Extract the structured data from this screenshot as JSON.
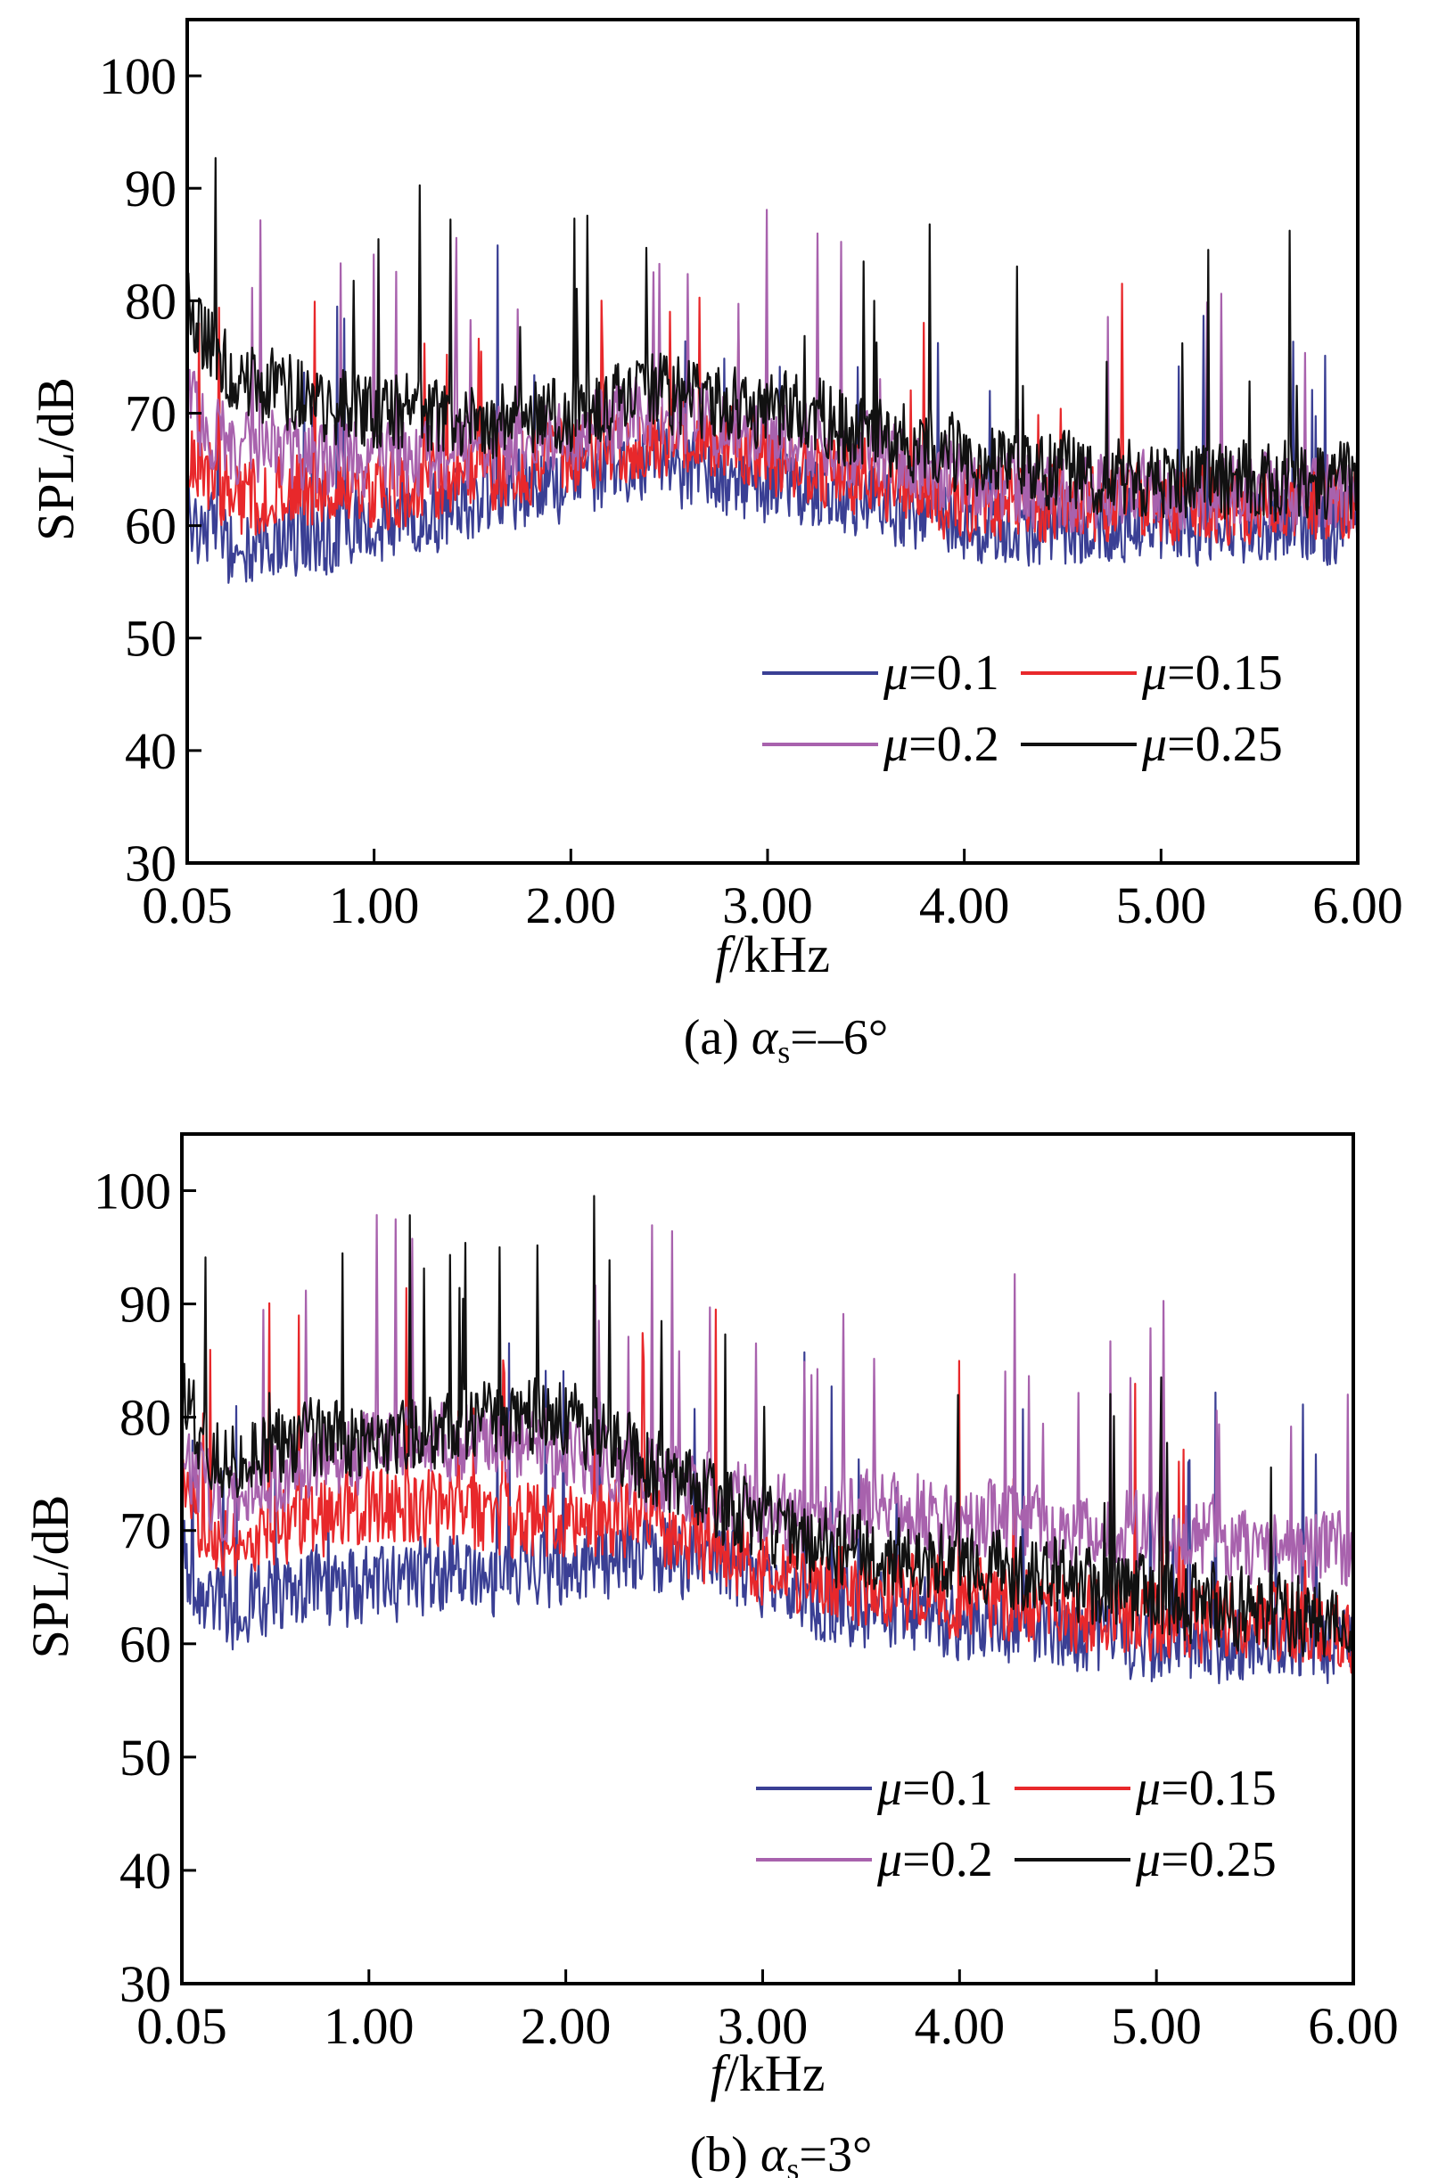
{
  "chart_data": [
    {
      "type": "line",
      "panel": "a",
      "caption": {
        "prefix": "(a) ",
        "symbol": "α",
        "subscript": "s",
        "suffix": "=–6°"
      },
      "xlabel": {
        "italic": "f",
        "rest": "/kHz"
      },
      "ylabel": "SPL/dB",
      "xlim": [
        0.05,
        6.0
      ],
      "ylim": [
        30,
        105
      ],
      "xticks": [
        "0.05",
        "1.00",
        "2.00",
        "3.00",
        "4.00",
        "5.00",
        "6.00"
      ],
      "yticks": [
        "30",
        "40",
        "50",
        "60",
        "70",
        "80",
        "90",
        "100"
      ],
      "grid": false,
      "legend_placement": "bottom-right",
      "series": [
        {
          "name": "μ=0.1",
          "symbol": "μ",
          "value_text": "=0.1",
          "color": "#3a3f94",
          "x": [
            0.05,
            0.1,
            0.2,
            0.3,
            0.5,
            0.7,
            1.0,
            1.3,
            1.6,
            2.0,
            2.4,
            2.8,
            3.2,
            3.6,
            4.0,
            4.5,
            5.0,
            5.5,
            6.0
          ],
          "y": [
            62,
            60,
            60,
            57,
            59,
            59,
            60,
            61,
            63,
            64,
            66,
            64,
            63,
            62,
            60,
            60,
            60,
            60,
            60
          ]
        },
        {
          "name": "μ=0.15",
          "symbol": "μ",
          "value_text": "=0.15",
          "color": "#e8282b",
          "x": [
            0.05,
            0.1,
            0.2,
            0.3,
            0.5,
            0.7,
            1.0,
            1.3,
            1.6,
            2.0,
            2.4,
            2.8,
            3.2,
            3.6,
            4.0,
            4.5,
            5.0,
            5.5,
            6.0
          ],
          "y": [
            66,
            66,
            64,
            62,
            63,
            63,
            63,
            64,
            65,
            66,
            68,
            67,
            65,
            64,
            62,
            62,
            62,
            62,
            62
          ]
        },
        {
          "name": "μ=0.2",
          "symbol": "μ",
          "value_text": "=0.2",
          "color": "#a862ad",
          "x": [
            0.05,
            0.1,
            0.2,
            0.3,
            0.5,
            0.7,
            1.0,
            1.3,
            1.6,
            2.0,
            2.4,
            2.8,
            3.2,
            3.6,
            4.0,
            4.5,
            5.0,
            5.5,
            6.0
          ],
          "y": [
            72,
            70,
            68,
            67,
            67,
            66,
            66,
            66,
            67,
            68,
            70,
            69,
            68,
            66,
            64,
            63,
            63,
            63,
            63
          ]
        },
        {
          "name": "μ=0.25",
          "symbol": "μ",
          "value_text": "=0.25",
          "color": "#111111",
          "x": [
            0.05,
            0.1,
            0.2,
            0.3,
            0.5,
            0.7,
            1.0,
            1.3,
            1.6,
            2.0,
            2.4,
            2.8,
            3.2,
            3.6,
            4.0,
            4.5,
            5.0,
            5.5,
            6.0
          ],
          "y": [
            80,
            78,
            75,
            73,
            72,
            71,
            70,
            70,
            69,
            70,
            72,
            71,
            70,
            68,
            66,
            65,
            64,
            64,
            64
          ]
        }
      ]
    },
    {
      "type": "line",
      "panel": "b",
      "caption": {
        "prefix": "(b) ",
        "symbol": "α",
        "subscript": "s",
        "suffix": "=3°"
      },
      "xlabel": {
        "italic": "f",
        "rest": "/kHz"
      },
      "ylabel": "SPL/dB",
      "xlim": [
        0.05,
        6.0
      ],
      "ylim": [
        30,
        105
      ],
      "xticks": [
        "0.05",
        "1.00",
        "2.00",
        "3.00",
        "4.00",
        "5.00",
        "6.00"
      ],
      "yticks": [
        "30",
        "40",
        "50",
        "60",
        "70",
        "80",
        "90",
        "100"
      ],
      "grid": false,
      "legend_placement": "bottom-right",
      "series": [
        {
          "name": "μ=0.1",
          "symbol": "μ",
          "value_text": "=0.1",
          "color": "#3a3f94",
          "x": [
            0.05,
            0.1,
            0.2,
            0.3,
            0.5,
            0.7,
            1.0,
            1.3,
            1.6,
            2.0,
            2.4,
            2.8,
            3.2,
            3.6,
            4.0,
            4.5,
            5.0,
            5.5,
            6.0
          ],
          "y": [
            68,
            66,
            64,
            63,
            64,
            65,
            65,
            66,
            66,
            67,
            68,
            67,
            64,
            63,
            62,
            61,
            60,
            60,
            60
          ]
        },
        {
          "name": "μ=0.15",
          "symbol": "μ",
          "value_text": "=0.15",
          "color": "#e8282b",
          "x": [
            0.05,
            0.1,
            0.2,
            0.3,
            0.5,
            0.7,
            1.0,
            1.3,
            1.6,
            2.0,
            2.4,
            2.8,
            3.2,
            3.6,
            4.0,
            4.5,
            5.0,
            5.5,
            6.0
          ],
          "y": [
            74,
            72,
            70,
            69,
            70,
            71,
            72,
            72,
            71,
            71,
            71,
            68,
            66,
            65,
            64,
            63,
            62,
            62,
            61
          ]
        },
        {
          "name": "μ=0.2",
          "symbol": "μ",
          "value_text": "=0.2",
          "color": "#a862ad",
          "x": [
            0.05,
            0.1,
            0.2,
            0.3,
            0.5,
            0.7,
            1.0,
            1.3,
            1.6,
            2.0,
            2.4,
            2.8,
            3.2,
            3.6,
            4.0,
            4.5,
            5.0,
            5.5,
            6.0
          ],
          "y": [
            78,
            76,
            73,
            72,
            74,
            76,
            77,
            78,
            78,
            77,
            75,
            73,
            71,
            72,
            71,
            70,
            70,
            69,
            68
          ]
        },
        {
          "name": "μ=0.25",
          "symbol": "μ",
          "value_text": "=0.25",
          "color": "#111111",
          "x": [
            0.05,
            0.1,
            0.2,
            0.3,
            0.5,
            0.7,
            1.0,
            1.3,
            1.6,
            2.0,
            2.4,
            2.8,
            3.2,
            3.6,
            4.0,
            4.5,
            5.0,
            5.5,
            6.0
          ],
          "y": [
            82,
            80,
            77,
            76,
            77,
            78,
            78,
            79,
            80,
            80,
            76,
            72,
            69,
            68,
            67,
            66,
            64,
            63,
            62
          ]
        }
      ]
    }
  ]
}
